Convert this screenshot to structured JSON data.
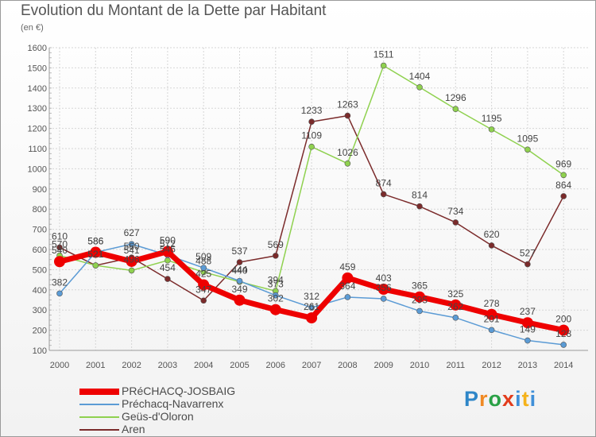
{
  "chart_data": {
    "type": "line",
    "title": "Evolution du Montant de la Dette par Habitant",
    "ylabel": "(en €)",
    "ylim": [
      100,
      1600
    ],
    "yticks": [
      100,
      200,
      300,
      400,
      500,
      600,
      700,
      800,
      900,
      1000,
      1100,
      1200,
      1300,
      1400,
      1500,
      1600
    ],
    "categories": [
      "2000",
      "2001",
      "2002",
      "2003",
      "2004",
      "2005",
      "2006",
      "2007",
      "2008",
      "2009",
      "2010",
      "2011",
      "2012",
      "2013",
      "2014"
    ],
    "grid": true,
    "legend_position": "bottom-left",
    "series": [
      {
        "name": "PRéCHACQ-JOSBAIG",
        "color": "#ee0000",
        "values": [
          540,
          586,
          541,
          590,
          425,
          349,
          302,
          261,
          459,
          403,
          365,
          325,
          278,
          237,
          200
        ]
      },
      {
        "name": "Préchacq-Navarrenx",
        "color": "#5b9bd5",
        "values": [
          382,
          586,
          627,
          572,
          509,
          444,
          373,
          312,
          364,
          356,
          295,
          262,
          201,
          149,
          128
        ]
      },
      {
        "name": "Geüs-d'Oloron",
        "color": "#8fd14f",
        "values": [
          570,
          521,
          496,
          546,
          488,
          440,
          394,
          1109,
          1026,
          1511,
          1404,
          1296,
          1195,
          1095,
          969
        ]
      },
      {
        "name": "Aren",
        "color": "#7b2b2b",
        "values": [
          610,
          521,
          560,
          454,
          347,
          537,
          569,
          1233,
          1263,
          874,
          814,
          734,
          620,
          527,
          864
        ]
      }
    ]
  },
  "logo": {
    "p": "P",
    "r": "r",
    "o": "o",
    "x": "x",
    "i": "i",
    "t": "t",
    "i2": "i"
  }
}
